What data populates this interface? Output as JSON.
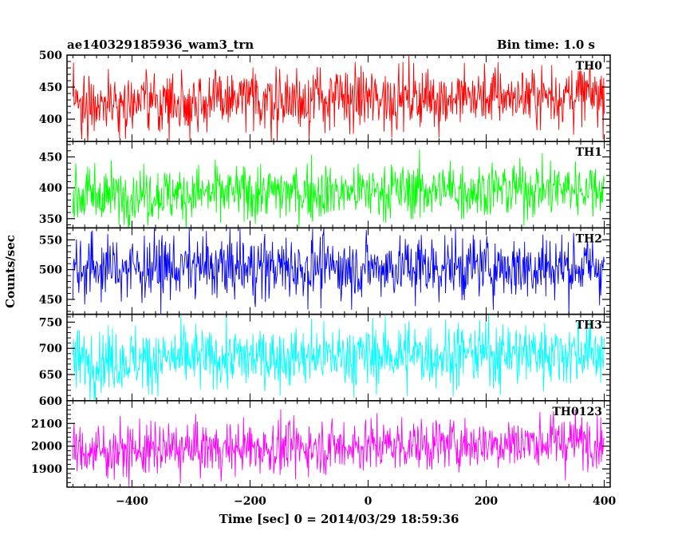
{
  "header": {
    "title": "ae140329185936_wam3_trn",
    "bin_time": "Bin time: 1.0 s"
  },
  "chart_data": {
    "type": "line",
    "xlabel": "Time [sec] 0 = 2014/03/29 18:59:36",
    "ylabel": "Counts/sec",
    "xlim": [
      -510,
      410
    ],
    "x_ticks": [
      -400,
      -200,
      0,
      200,
      400
    ],
    "x_range": [
      -500,
      400
    ],
    "bin_time_s": 1.0,
    "grid": false,
    "panels": [
      {
        "name": "TH0",
        "color": "#ff0000",
        "ylim": [
          365,
          500
        ],
        "y_ticks": [
          400,
          450,
          500
        ],
        "mean_start": 425,
        "mean_end": 438,
        "amplitude": 24,
        "clip_top": true
      },
      {
        "name": "TH1",
        "color": "#00ff00",
        "ylim": [
          335,
          475
        ],
        "y_ticks": [
          350,
          400,
          450
        ],
        "mean_start": 388,
        "mean_end": 400,
        "amplitude": 23,
        "clip_top": true
      },
      {
        "name": "TH2",
        "color": "#0000ff",
        "ylim": [
          425,
          570
        ],
        "y_ticks": [
          450,
          500,
          550
        ],
        "mean_start": 503,
        "mean_end": 505,
        "amplitude": 27,
        "clip_top": true
      },
      {
        "name": "TH3",
        "color": "#00ffff",
        "ylim": [
          600,
          765
        ],
        "y_ticks": [
          600,
          650,
          700,
          750
        ],
        "mean_start": 676,
        "mean_end": 694,
        "amplitude": 30,
        "clip_top": true
      },
      {
        "name": "TH0123",
        "color": "#ff00ff",
        "ylim": [
          1820,
          2200
        ],
        "y_ticks": [
          1900,
          2000,
          2100
        ],
        "mean_start": 1975,
        "mean_end": 2025,
        "amplitude": 58,
        "clip_top": true
      }
    ]
  }
}
